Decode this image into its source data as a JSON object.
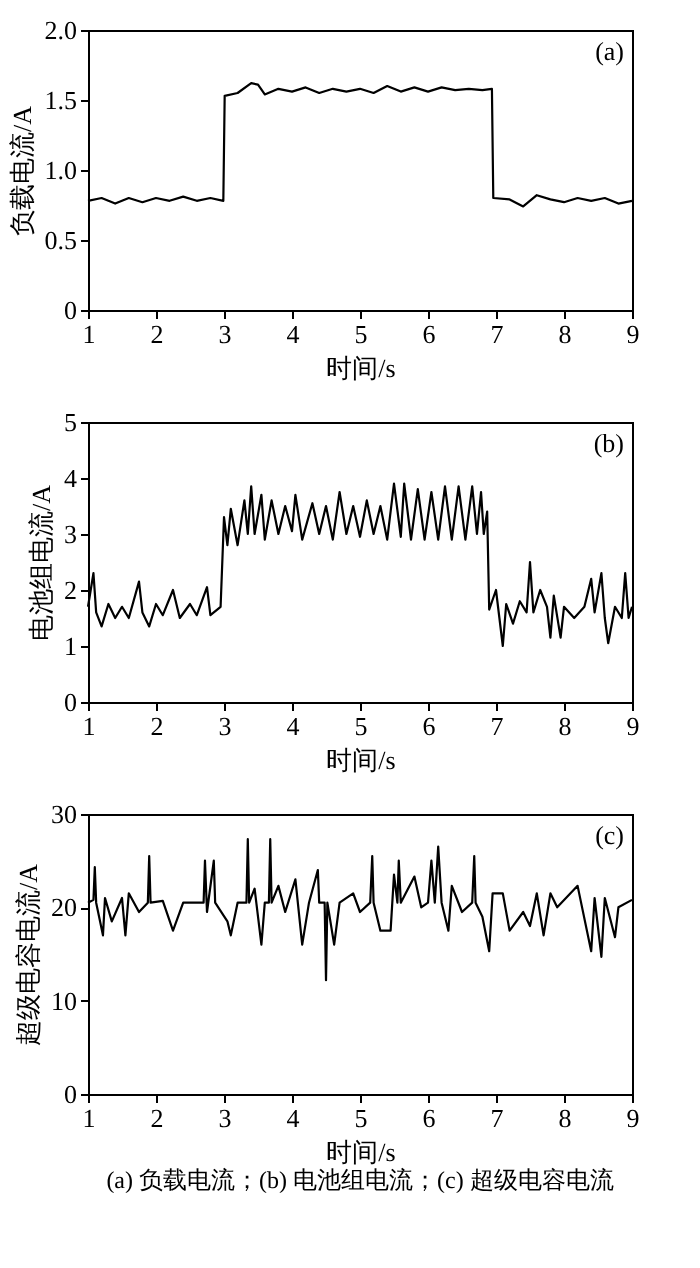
{
  "chart_data": [
    {
      "type": "line",
      "xlabel": "时间/s",
      "ylabel": "负载电流/A",
      "annotations": [
        "(a)"
      ],
      "grid": false,
      "xlim": [
        1,
        9
      ],
      "xticks": [
        1,
        2,
        3,
        4,
        5,
        6,
        7,
        8,
        9
      ],
      "ylim": [
        0,
        2
      ],
      "yticks": [
        0,
        0.5,
        {
          "value": 1,
          "label": "1.0"
        },
        1.5,
        {
          "value": 2,
          "label": "2.0"
        }
      ],
      "series": [
        {
          "color": "#000000",
          "x": [
            1,
            1.2,
            1.4,
            1.6,
            1.8,
            2.0,
            2.2,
            2.4,
            2.6,
            2.8,
            2.99,
            3.01,
            3.2,
            3.4,
            3.5,
            3.6,
            3.8,
            4.0,
            4.2,
            4.4,
            4.6,
            4.8,
            5.0,
            5.2,
            5.4,
            5.6,
            5.8,
            6.0,
            6.2,
            6.4,
            6.6,
            6.8,
            6.94,
            6.96,
            7.2,
            7.4,
            7.6,
            7.8,
            8.0,
            8.2,
            8.4,
            8.6,
            8.8,
            9.0
          ],
          "values": [
            0.78,
            0.8,
            0.76,
            0.8,
            0.77,
            0.8,
            0.78,
            0.81,
            0.78,
            0.8,
            0.78,
            1.53,
            1.55,
            1.62,
            1.61,
            1.54,
            1.58,
            1.56,
            1.59,
            1.55,
            1.58,
            1.56,
            1.58,
            1.55,
            1.6,
            1.56,
            1.59,
            1.56,
            1.59,
            1.57,
            1.58,
            1.57,
            1.58,
            0.8,
            0.79,
            0.74,
            0.82,
            0.79,
            0.77,
            0.8,
            0.78,
            0.8,
            0.76,
            0.78
          ]
        }
      ]
    },
    {
      "type": "line",
      "xlabel": "时间/s",
      "ylabel": "电池组电流/A",
      "annotations": [
        "(b)"
      ],
      "grid": false,
      "xlim": [
        1,
        9
      ],
      "xticks": [
        1,
        2,
        3,
        4,
        5,
        6,
        7,
        8,
        9
      ],
      "ylim": [
        0,
        5
      ],
      "yticks": [
        0,
        1,
        2,
        3,
        4,
        5
      ],
      "series": [
        {
          "color": "#000000",
          "x": [
            1.0,
            1.08,
            1.12,
            1.2,
            1.3,
            1.4,
            1.5,
            1.6,
            1.75,
            1.8,
            1.9,
            2.0,
            2.1,
            2.25,
            2.35,
            2.5,
            2.6,
            2.75,
            2.8,
            2.95,
            3.0,
            3.05,
            3.1,
            3.2,
            3.3,
            3.35,
            3.4,
            3.45,
            3.55,
            3.6,
            3.7,
            3.8,
            3.9,
            4.0,
            4.05,
            4.15,
            4.3,
            4.4,
            4.5,
            4.6,
            4.7,
            4.8,
            4.9,
            5.0,
            5.1,
            5.2,
            5.3,
            5.4,
            5.5,
            5.6,
            5.65,
            5.75,
            5.85,
            5.95,
            6.05,
            6.15,
            6.25,
            6.35,
            6.45,
            6.55,
            6.65,
            6.72,
            6.78,
            6.82,
            6.87,
            6.9,
            7.0,
            7.05,
            7.1,
            7.15,
            7.25,
            7.35,
            7.45,
            7.5,
            7.55,
            7.65,
            7.75,
            7.8,
            7.85,
            7.95,
            8.0,
            8.15,
            8.3,
            8.4,
            8.45,
            8.55,
            8.6,
            8.65,
            8.75,
            8.85,
            8.9,
            8.95,
            9.0
          ],
          "values": [
            1.7,
            2.3,
            1.6,
            1.35,
            1.75,
            1.5,
            1.7,
            1.5,
            2.15,
            1.6,
            1.35,
            1.75,
            1.55,
            2.0,
            1.5,
            1.75,
            1.55,
            2.05,
            1.55,
            1.7,
            3.3,
            2.8,
            3.45,
            2.8,
            3.6,
            3.0,
            3.85,
            3.0,
            3.7,
            2.9,
            3.6,
            3.0,
            3.5,
            3.05,
            3.7,
            2.9,
            3.55,
            3.0,
            3.5,
            2.9,
            3.75,
            3.0,
            3.5,
            2.95,
            3.6,
            3.0,
            3.5,
            2.9,
            3.9,
            2.95,
            3.9,
            2.9,
            3.8,
            2.9,
            3.75,
            2.9,
            3.85,
            2.9,
            3.85,
            2.9,
            3.85,
            3.0,
            3.75,
            3.0,
            3.4,
            1.65,
            2.0,
            1.5,
            1.0,
            1.75,
            1.4,
            1.8,
            1.6,
            2.5,
            1.6,
            2.0,
            1.7,
            1.15,
            1.9,
            1.15,
            1.7,
            1.5,
            1.7,
            2.2,
            1.6,
            2.3,
            1.5,
            1.05,
            1.7,
            1.5,
            2.3,
            1.5,
            1.7
          ]
        }
      ]
    },
    {
      "type": "line",
      "xlabel": "时间/s",
      "ylabel": "超级电容电流/A",
      "annotations": [
        "(c)",
        "(a) 负载电流；(b) 电池组电流；(c) 超级电容电流"
      ],
      "grid": false,
      "xlim": [
        1,
        9
      ],
      "xticks": [
        1,
        2,
        3,
        4,
        5,
        6,
        7,
        8,
        9
      ],
      "ylim": [
        0,
        30
      ],
      "yticks": [
        0,
        10,
        20,
        30
      ],
      "series": [
        {
          "color": "#000000",
          "x": [
            1.0,
            1.08,
            1.1,
            1.12,
            1.22,
            1.25,
            1.35,
            1.5,
            1.55,
            1.6,
            1.75,
            1.88,
            1.9,
            1.92,
            2.1,
            2.25,
            2.4,
            2.7,
            2.72,
            2.75,
            2.85,
            2.87,
            3.05,
            3.1,
            3.2,
            3.33,
            3.35,
            3.37,
            3.45,
            3.55,
            3.6,
            3.66,
            3.68,
            3.7,
            3.8,
            3.9,
            4.05,
            4.15,
            4.25,
            4.38,
            4.4,
            4.48,
            4.5,
            4.52,
            4.62,
            4.7,
            4.9,
            5.0,
            5.15,
            5.18,
            5.2,
            5.3,
            5.45,
            5.5,
            5.55,
            5.57,
            5.6,
            5.8,
            5.9,
            6.0,
            6.05,
            6.1,
            6.15,
            6.2,
            6.3,
            6.35,
            6.5,
            6.65,
            6.68,
            6.7,
            6.8,
            6.9,
            6.95,
            7.1,
            7.2,
            7.4,
            7.5,
            7.6,
            7.7,
            7.8,
            7.9,
            8.2,
            8.4,
            8.45,
            8.55,
            8.6,
            8.75,
            8.8,
            9.0
          ],
          "values": [
            20.5,
            20.8,
            24.3,
            20.5,
            17,
            21,
            18.5,
            21,
            17,
            21.5,
            19.5,
            20.5,
            25.5,
            20.5,
            20.7,
            17.5,
            20.5,
            20.5,
            25,
            19.5,
            25,
            20.5,
            18.5,
            17,
            20.5,
            20.5,
            27.3,
            20.5,
            22,
            16,
            20.5,
            20.5,
            27.3,
            20.5,
            22.3,
            19.5,
            23,
            16,
            20.5,
            24,
            20.5,
            20.5,
            12.2,
            20.5,
            16,
            20.5,
            21.5,
            19.5,
            20.5,
            25.5,
            20.5,
            17.5,
            17.5,
            23.5,
            20.5,
            25,
            20.5,
            23.3,
            20,
            20.5,
            25,
            20.5,
            26.5,
            20.5,
            17.5,
            22.3,
            19.5,
            20.5,
            25.5,
            20.5,
            19,
            15.3,
            21.5,
            21.5,
            17.5,
            19.5,
            18,
            21.5,
            17,
            21.5,
            20,
            22.3,
            15.3,
            21,
            14.7,
            21,
            16.8,
            20,
            20.8
          ]
        }
      ]
    }
  ]
}
